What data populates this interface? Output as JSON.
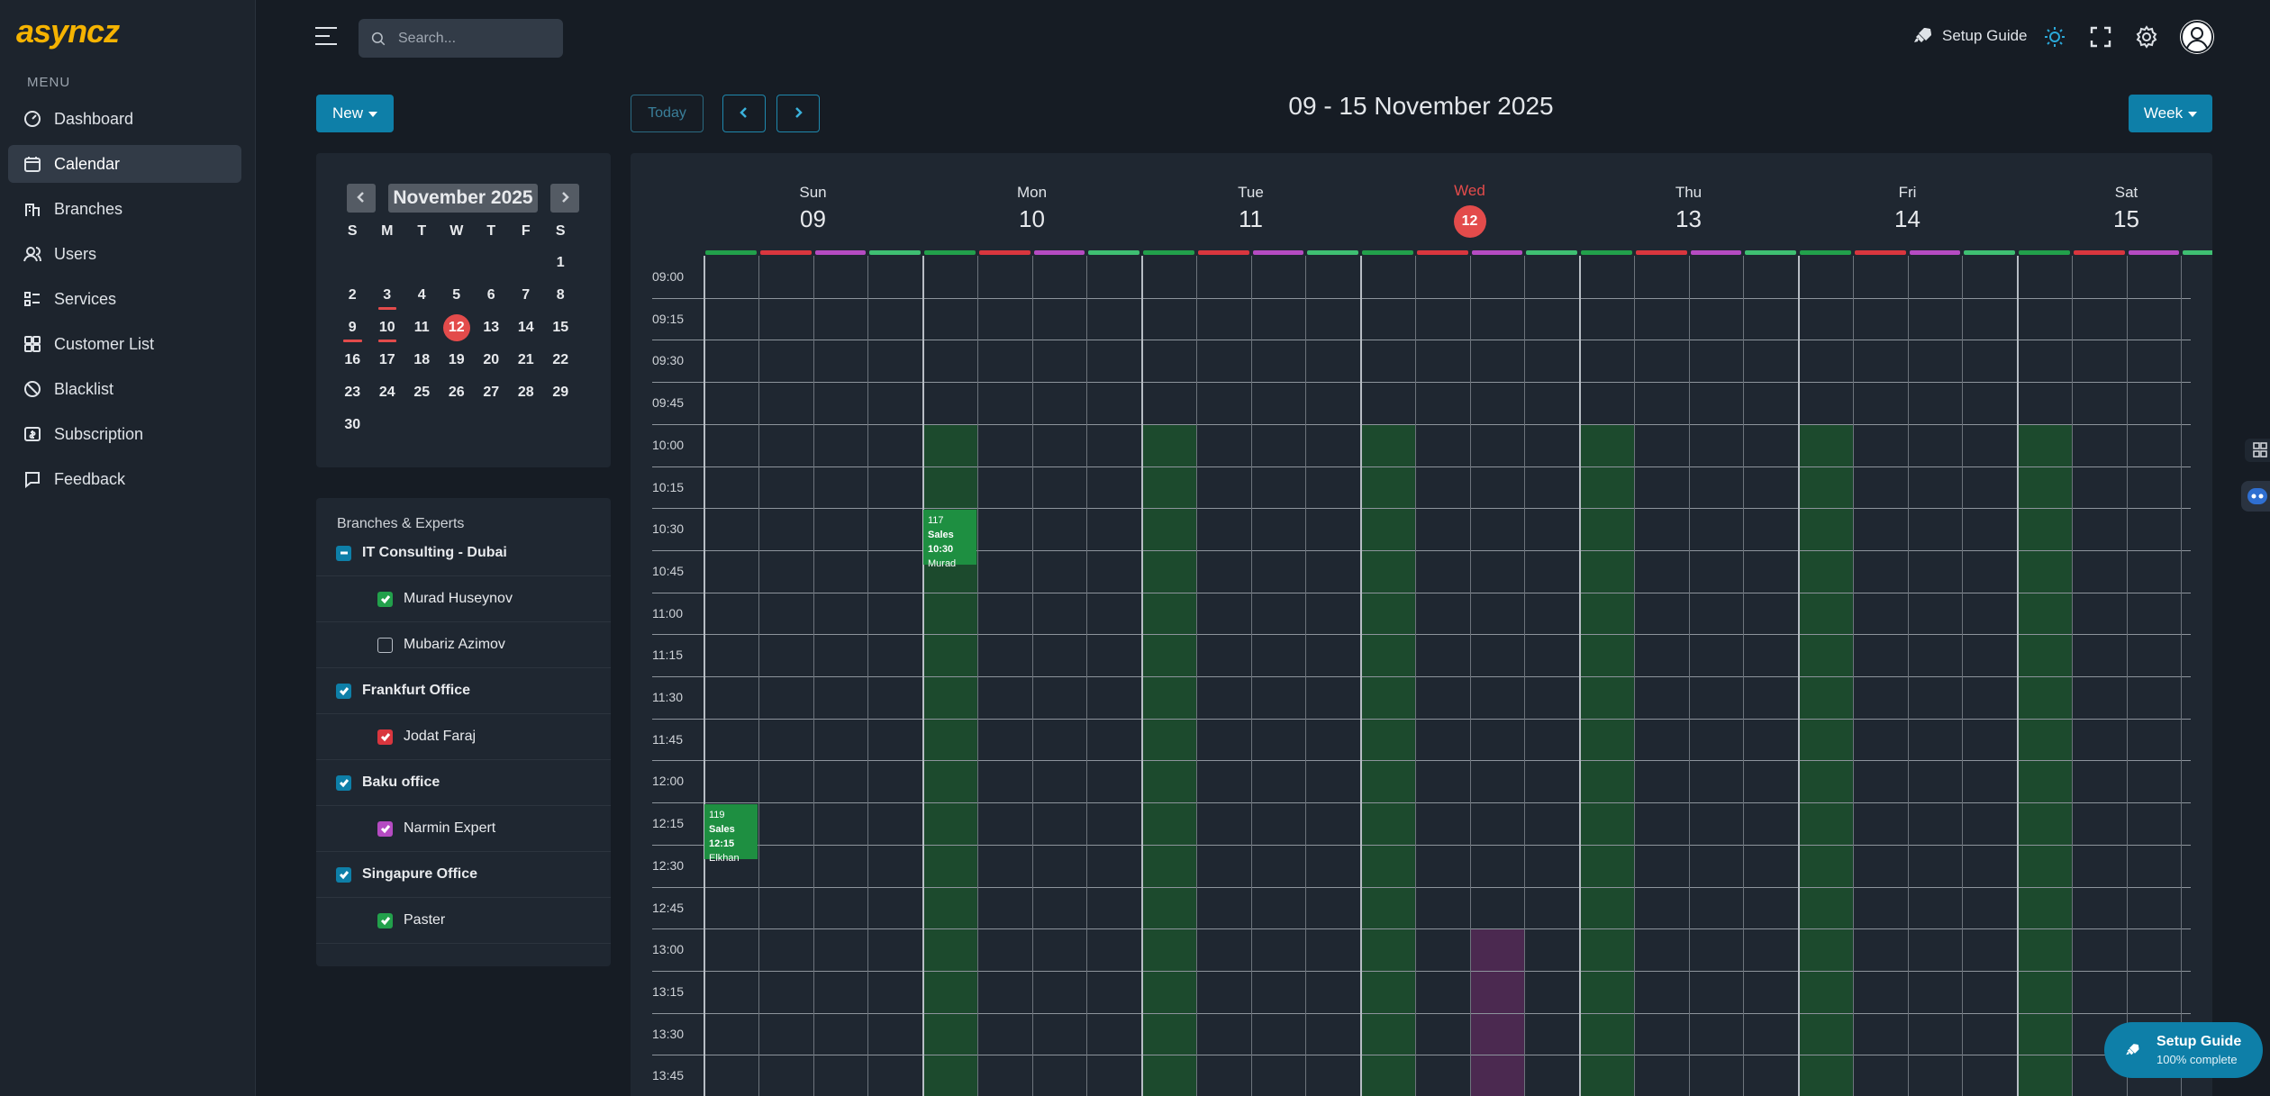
{
  "logo": "asyncz",
  "menu_title": "MENU",
  "nav": [
    {
      "label": "Dashboard",
      "icon": "dashboard-icon"
    },
    {
      "label": "Calendar",
      "icon": "calendar-icon",
      "active": true
    },
    {
      "label": "Branches",
      "icon": "branches-icon"
    },
    {
      "label": "Users",
      "icon": "users-icon"
    },
    {
      "label": "Services",
      "icon": "services-icon"
    },
    {
      "label": "Customer List",
      "icon": "customer-list-icon"
    },
    {
      "label": "Blacklist",
      "icon": "blacklist-icon"
    },
    {
      "label": "Subscription",
      "icon": "subscription-icon"
    },
    {
      "label": "Feedback",
      "icon": "feedback-icon"
    }
  ],
  "search": {
    "placeholder": "Search..."
  },
  "header": {
    "setup_guide": "Setup Guide"
  },
  "toolbar": {
    "new_label": "New",
    "today_label": "Today",
    "range_title": "09 - 15 November 2025",
    "view_label": "Week"
  },
  "mini_calendar": {
    "title": "November 2025",
    "weekdays": [
      "S",
      "M",
      "T",
      "W",
      "T",
      "F",
      "S"
    ],
    "weeks": [
      [
        "",
        "",
        "",
        "",
        "",
        "",
        "1"
      ],
      [
        "2",
        "3",
        "4",
        "5",
        "6",
        "7",
        "8"
      ],
      [
        "9",
        "10",
        "11",
        "12",
        "13",
        "14",
        "15"
      ],
      [
        "16",
        "17",
        "18",
        "19",
        "20",
        "21",
        "22"
      ],
      [
        "23",
        "24",
        "25",
        "26",
        "27",
        "28",
        "29"
      ],
      [
        "30",
        "",
        "",
        "",
        "",
        "",
        ""
      ]
    ],
    "today": "12",
    "booked_days": [
      "3",
      "9",
      "10"
    ]
  },
  "branches_panel": {
    "title": "Branches & Experts",
    "rows": [
      {
        "type": "branch",
        "label": "IT Consulting - Dubai",
        "state": "partial",
        "color": "#0e7fa8"
      },
      {
        "type": "expert",
        "label": "Murad Huseynov",
        "state": "checked",
        "color": "#22a04b"
      },
      {
        "type": "expert",
        "label": "Mubariz Azimov",
        "state": "unchecked",
        "color": ""
      },
      {
        "type": "branch",
        "label": "Frankfurt Office",
        "state": "checked",
        "color": "#0e7fa8"
      },
      {
        "type": "expert",
        "label": "Jodat Faraj",
        "state": "checked",
        "color": "#d9363e"
      },
      {
        "type": "branch",
        "label": "Baku office",
        "state": "checked",
        "color": "#0e7fa8"
      },
      {
        "type": "expert",
        "label": "Narmin Expert",
        "state": "checked",
        "color": "#b54bc2"
      },
      {
        "type": "branch",
        "label": "Singapure Office",
        "state": "checked",
        "color": "#0e7fa8"
      },
      {
        "type": "expert",
        "label": "Paster",
        "state": "checked",
        "color": "#22a04b"
      }
    ]
  },
  "week": {
    "days": [
      {
        "name": "Sun",
        "num": "09"
      },
      {
        "name": "Mon",
        "num": "10"
      },
      {
        "name": "Tue",
        "num": "11"
      },
      {
        "name": "Wed",
        "num": "12",
        "today": true
      },
      {
        "name": "Thu",
        "num": "13"
      },
      {
        "name": "Fri",
        "num": "14"
      },
      {
        "name": "Sat",
        "num": "15"
      }
    ],
    "expert_colors": [
      "#22a04b",
      "#d9363e",
      "#b54bc2",
      "#3fbf72"
    ],
    "times": [
      "09:00",
      "09:15",
      "09:30",
      "09:45",
      "10:00",
      "10:15",
      "10:30",
      "10:45",
      "11:00",
      "11:15",
      "11:30",
      "11:45",
      "12:00",
      "12:15",
      "12:30",
      "12:45",
      "13:00",
      "13:15",
      "13:30",
      "13:45"
    ],
    "availability": [
      {
        "day": 1,
        "col": 0,
        "from": "10:00",
        "color": "#1c4a2d"
      },
      {
        "day": 2,
        "col": 0,
        "from": "10:00",
        "color": "#1c4a2d"
      },
      {
        "day": 3,
        "col": 0,
        "from": "10:00",
        "color": "#1c4a2d"
      },
      {
        "day": 3,
        "col": 2,
        "from": "13:00",
        "color": "#4b2950"
      },
      {
        "day": 4,
        "col": 0,
        "from": "10:00",
        "color": "#1c4a2d"
      },
      {
        "day": 5,
        "col": 0,
        "from": "10:00",
        "color": "#1c4a2d"
      },
      {
        "day": 6,
        "col": 0,
        "from": "10:00",
        "color": "#1c4a2d"
      }
    ],
    "events": [
      {
        "day": 1,
        "col": 0,
        "start": "10:30",
        "id": "117",
        "service": "Sales",
        "time": "10:30",
        "person": "Murad"
      },
      {
        "day": 0,
        "col": 0,
        "start": "12:15",
        "id": "119",
        "service": "Sales",
        "time": "12:15",
        "person": "Elkhan"
      }
    ]
  },
  "fab": {
    "title": "Setup Guide",
    "subtitle": "100% complete"
  }
}
